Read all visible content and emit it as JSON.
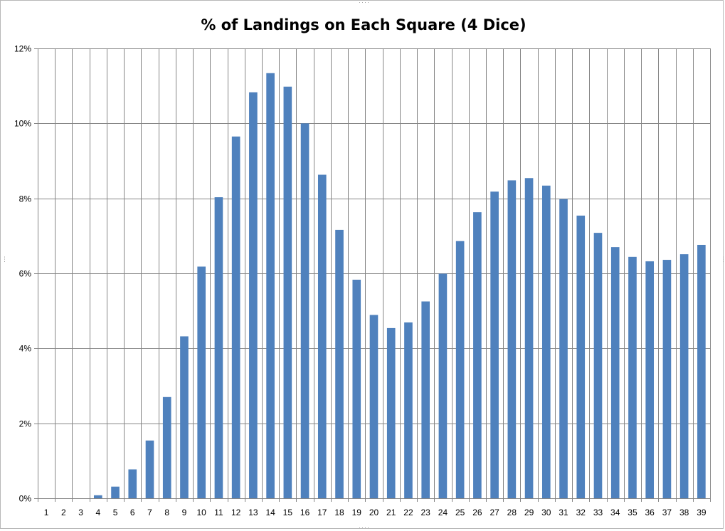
{
  "chart_data": {
    "type": "bar",
    "title": "% of Landings on Each Square (4 Dice)",
    "xlabel": "",
    "ylabel": "",
    "categories": [
      "1",
      "2",
      "3",
      "4",
      "5",
      "6",
      "7",
      "8",
      "9",
      "10",
      "11",
      "12",
      "13",
      "14",
      "15",
      "16",
      "17",
      "18",
      "19",
      "20",
      "21",
      "22",
      "23",
      "24",
      "25",
      "26",
      "27",
      "28",
      "29",
      "30",
      "31",
      "32",
      "33",
      "34",
      "35",
      "36",
      "37",
      "38",
      "39"
    ],
    "values": [
      0,
      0,
      0,
      0.08,
      0.31,
      0.77,
      1.54,
      2.7,
      4.32,
      6.18,
      8.03,
      9.65,
      10.83,
      11.34,
      10.98,
      10.0,
      8.63,
      7.16,
      5.83,
      4.89,
      4.54,
      4.69,
      5.25,
      5.99,
      6.86,
      7.63,
      8.18,
      8.48,
      8.54,
      8.34,
      7.98,
      7.54,
      7.08,
      6.7,
      6.44,
      6.32,
      6.36,
      6.51,
      6.76
    ],
    "ylim": [
      0,
      12
    ],
    "y_ticks": [
      0,
      2,
      4,
      6,
      8,
      10,
      12
    ],
    "y_tick_labels": [
      "0%",
      "2%",
      "4%",
      "6%",
      "8%",
      "10%",
      "12%"
    ],
    "grid": "on",
    "legend": "none",
    "colors": {
      "bar": "#4f81bd",
      "gridline": "#868686",
      "axis": "#868686"
    }
  }
}
